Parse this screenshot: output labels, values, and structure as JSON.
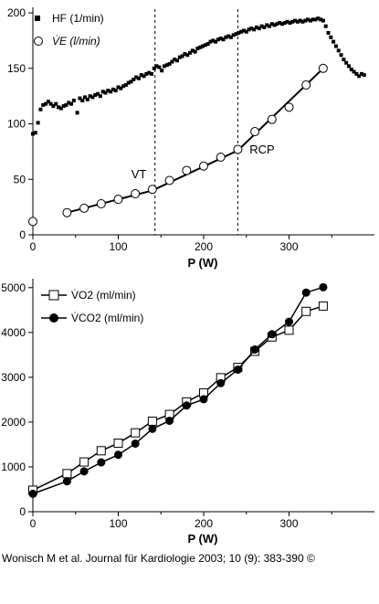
{
  "caption": "Wonisch M et al. Journal für Kardiologie 2003; 10 (9): 383-390 ©",
  "chart_data": [
    {
      "type": "scatter",
      "xlabel": "P (W)",
      "ylabel": "",
      "xlim": [
        0,
        400
      ],
      "ylim": [
        0,
        205
      ],
      "xticks": [
        0,
        100,
        200,
        300
      ],
      "yticks": [
        0,
        50,
        100,
        150,
        200
      ],
      "legend_position": "top-left",
      "series": [
        {
          "name": "HF (1/min)",
          "marker": "filled-square",
          "points": [
            [
              0,
              91
            ],
            [
              3,
              92
            ],
            [
              6,
              101
            ],
            [
              9,
              113
            ],
            [
              12,
              117
            ],
            [
              15,
              118
            ],
            [
              18,
              120
            ],
            [
              21,
              118
            ],
            [
              24,
              116
            ],
            [
              27,
              118
            ],
            [
              30,
              115
            ],
            [
              33,
              114
            ],
            [
              36,
              116
            ],
            [
              39,
              117
            ],
            [
              42,
              119
            ],
            [
              45,
              118
            ],
            [
              48,
              121
            ],
            [
              52,
              110
            ],
            [
              55,
              123
            ],
            [
              58,
              121
            ],
            [
              61,
              124
            ],
            [
              64,
              122
            ],
            [
              67,
              125
            ],
            [
              70,
              124
            ],
            [
              73,
              126
            ],
            [
              76,
              127
            ],
            [
              79,
              125
            ],
            [
              82,
              129
            ],
            [
              85,
              128
            ],
            [
              88,
              130
            ],
            [
              91,
              129
            ],
            [
              94,
              131
            ],
            [
              97,
              130
            ],
            [
              100,
              133
            ],
            [
              103,
              132
            ],
            [
              106,
              134
            ],
            [
              109,
              135
            ],
            [
              112,
              137
            ],
            [
              115,
              138
            ],
            [
              118,
              140
            ],
            [
              121,
              142
            ],
            [
              124,
              141
            ],
            [
              127,
              144
            ],
            [
              130,
              143
            ],
            [
              133,
              145
            ],
            [
              136,
              146
            ],
            [
              139,
              145
            ],
            [
              142,
              150
            ],
            [
              145,
              152
            ],
            [
              148,
              151
            ],
            [
              151,
              148
            ],
            [
              154,
              152
            ],
            [
              157,
              153
            ],
            [
              160,
              154
            ],
            [
              163,
              156
            ],
            [
              166,
              158
            ],
            [
              169,
              157
            ],
            [
              172,
              160
            ],
            [
              175,
              161
            ],
            [
              178,
              163
            ],
            [
              181,
              162
            ],
            [
              184,
              164
            ],
            [
              187,
              166
            ],
            [
              190,
              165
            ],
            [
              193,
              168
            ],
            [
              196,
              169
            ],
            [
              199,
              170
            ],
            [
              202,
              171
            ],
            [
              205,
              172
            ],
            [
              208,
              174
            ],
            [
              211,
              175
            ],
            [
              214,
              174
            ],
            [
              217,
              176
            ],
            [
              220,
              177
            ],
            [
              223,
              176
            ],
            [
              226,
              178
            ],
            [
              229,
              179
            ],
            [
              232,
              178
            ],
            [
              235,
              180
            ],
            [
              238,
              181
            ],
            [
              241,
              182
            ],
            [
              244,
              183
            ],
            [
              247,
              184
            ],
            [
              250,
              183
            ],
            [
              253,
              185
            ],
            [
              256,
              186
            ],
            [
              259,
              185
            ],
            [
              262,
              187
            ],
            [
              265,
              186
            ],
            [
              268,
              188
            ],
            [
              271,
              187
            ],
            [
              274,
              189
            ],
            [
              277,
              188
            ],
            [
              280,
              190
            ],
            [
              283,
              189
            ],
            [
              286,
              190
            ],
            [
              289,
              191
            ],
            [
              292,
              190
            ],
            [
              295,
              191
            ],
            [
              298,
              192
            ],
            [
              301,
              191
            ],
            [
              304,
              192
            ],
            [
              307,
              193
            ],
            [
              310,
              192
            ],
            [
              313,
              193
            ],
            [
              316,
              192
            ],
            [
              319,
              193
            ],
            [
              322,
              194
            ],
            [
              325,
              193
            ],
            [
              328,
              194
            ],
            [
              331,
              194
            ],
            [
              334,
              195
            ],
            [
              337,
              194
            ],
            [
              340,
              193
            ],
            [
              343,
              188
            ],
            [
              346,
              182
            ],
            [
              349,
              178
            ],
            [
              352,
              174
            ],
            [
              355,
              170
            ],
            [
              358,
              166
            ],
            [
              361,
              162
            ],
            [
              364,
              158
            ],
            [
              367,
              155
            ],
            [
              370,
              152
            ],
            [
              373,
              149
            ],
            [
              376,
              147
            ],
            [
              379,
              145
            ],
            [
              382,
              143
            ],
            [
              385,
              145
            ],
            [
              388,
              144
            ]
          ]
        },
        {
          "name": "V̇E (l/min)",
          "marker": "open-circle",
          "points": [
            [
              0,
              12
            ],
            [
              40,
              20
            ],
            [
              60,
              24
            ],
            [
              80,
              28
            ],
            [
              100,
              32
            ],
            [
              120,
              37
            ],
            [
              140,
              41
            ],
            [
              160,
              49
            ],
            [
              180,
              58
            ],
            [
              200,
              62
            ],
            [
              220,
              70
            ],
            [
              240,
              77
            ],
            [
              260,
              93
            ],
            [
              280,
              104
            ],
            [
              300,
              115
            ],
            [
              320,
              135
            ],
            [
              340,
              150
            ]
          ]
        }
      ],
      "fit_line": [
        [
          40,
          20
        ],
        [
          140,
          40
        ],
        [
          240,
          76
        ],
        [
          340,
          150
        ]
      ],
      "reference_lines": [
        {
          "x": 143,
          "label": "VT"
        },
        {
          "x": 240,
          "label": "RCP"
        }
      ]
    },
    {
      "type": "line",
      "xlabel": "P (W)",
      "ylabel": "",
      "xlim": [
        0,
        400
      ],
      "ylim": [
        0,
        5200
      ],
      "xticks": [
        0,
        100,
        200,
        300
      ],
      "yticks": [
        0,
        1000,
        2000,
        3000,
        4000,
        5000
      ],
      "legend_position": "top-left",
      "series": [
        {
          "name": "V̇O2 (ml/min)",
          "marker": "open-square",
          "x": [
            0,
            40,
            60,
            80,
            100,
            120,
            140,
            160,
            180,
            200,
            220,
            240,
            260,
            280,
            300,
            320,
            340
          ],
          "values": [
            480,
            850,
            1110,
            1360,
            1530,
            1760,
            2020,
            2170,
            2450,
            2650,
            2990,
            3220,
            3580,
            3900,
            4050,
            4470,
            4590
          ]
        },
        {
          "name": "V̇CO2 (ml/min)",
          "marker": "filled-circle",
          "x": [
            0,
            40,
            60,
            80,
            100,
            120,
            140,
            160,
            180,
            200,
            220,
            240,
            260,
            280,
            300,
            320,
            340
          ],
          "values": [
            400,
            680,
            900,
            1100,
            1270,
            1520,
            1850,
            2030,
            2370,
            2510,
            2870,
            3170,
            3620,
            3960,
            4240,
            4890,
            5010
          ]
        }
      ]
    }
  ]
}
